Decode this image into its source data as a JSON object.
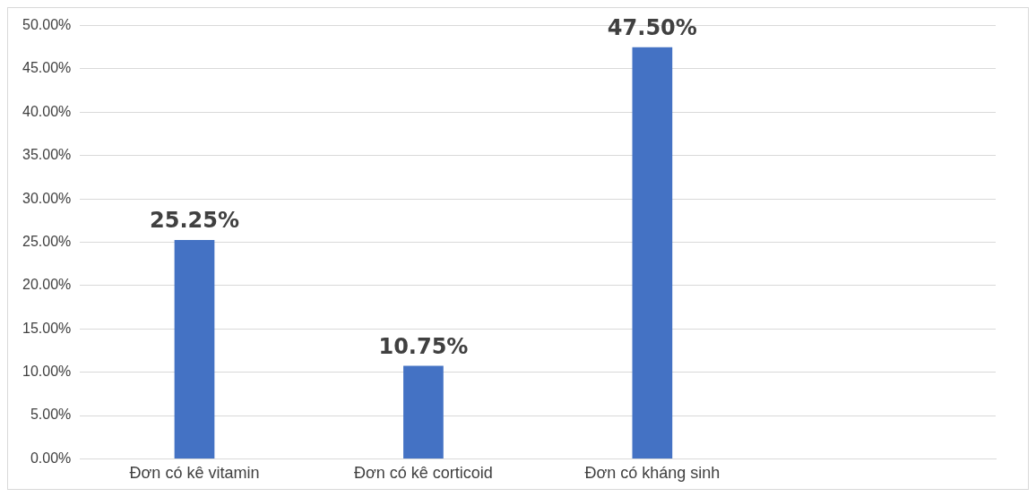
{
  "chart_data": {
    "type": "bar",
    "categories": [
      "Đơn có kê vitamin",
      "Đơn có kê corticoid",
      "Đơn có kháng sinh",
      null
    ],
    "values": [
      25.25,
      10.75,
      47.5,
      null
    ],
    "color": "#4472c4",
    "value_labels": [
      "25.25%",
      "10.75%",
      "47.50%",
      null
    ],
    "ylim": [
      0,
      50
    ],
    "yticks": [
      {
        "value": 0,
        "label": "0.00%"
      },
      {
        "value": 5,
        "label": "5.00%"
      },
      {
        "value": 10,
        "label": "10.00%"
      },
      {
        "value": 15,
        "label": "15.00%"
      },
      {
        "value": 20,
        "label": "20.00%"
      },
      {
        "value": 25,
        "label": "25.00%"
      },
      {
        "value": 30,
        "label": "30.00%"
      },
      {
        "value": 35,
        "label": "35.00%"
      },
      {
        "value": 40,
        "label": "40.00%"
      },
      {
        "value": 45,
        "label": "45.00%"
      },
      {
        "value": 50,
        "label": "50.00%"
      }
    ],
    "grid": "y",
    "legend": false
  }
}
